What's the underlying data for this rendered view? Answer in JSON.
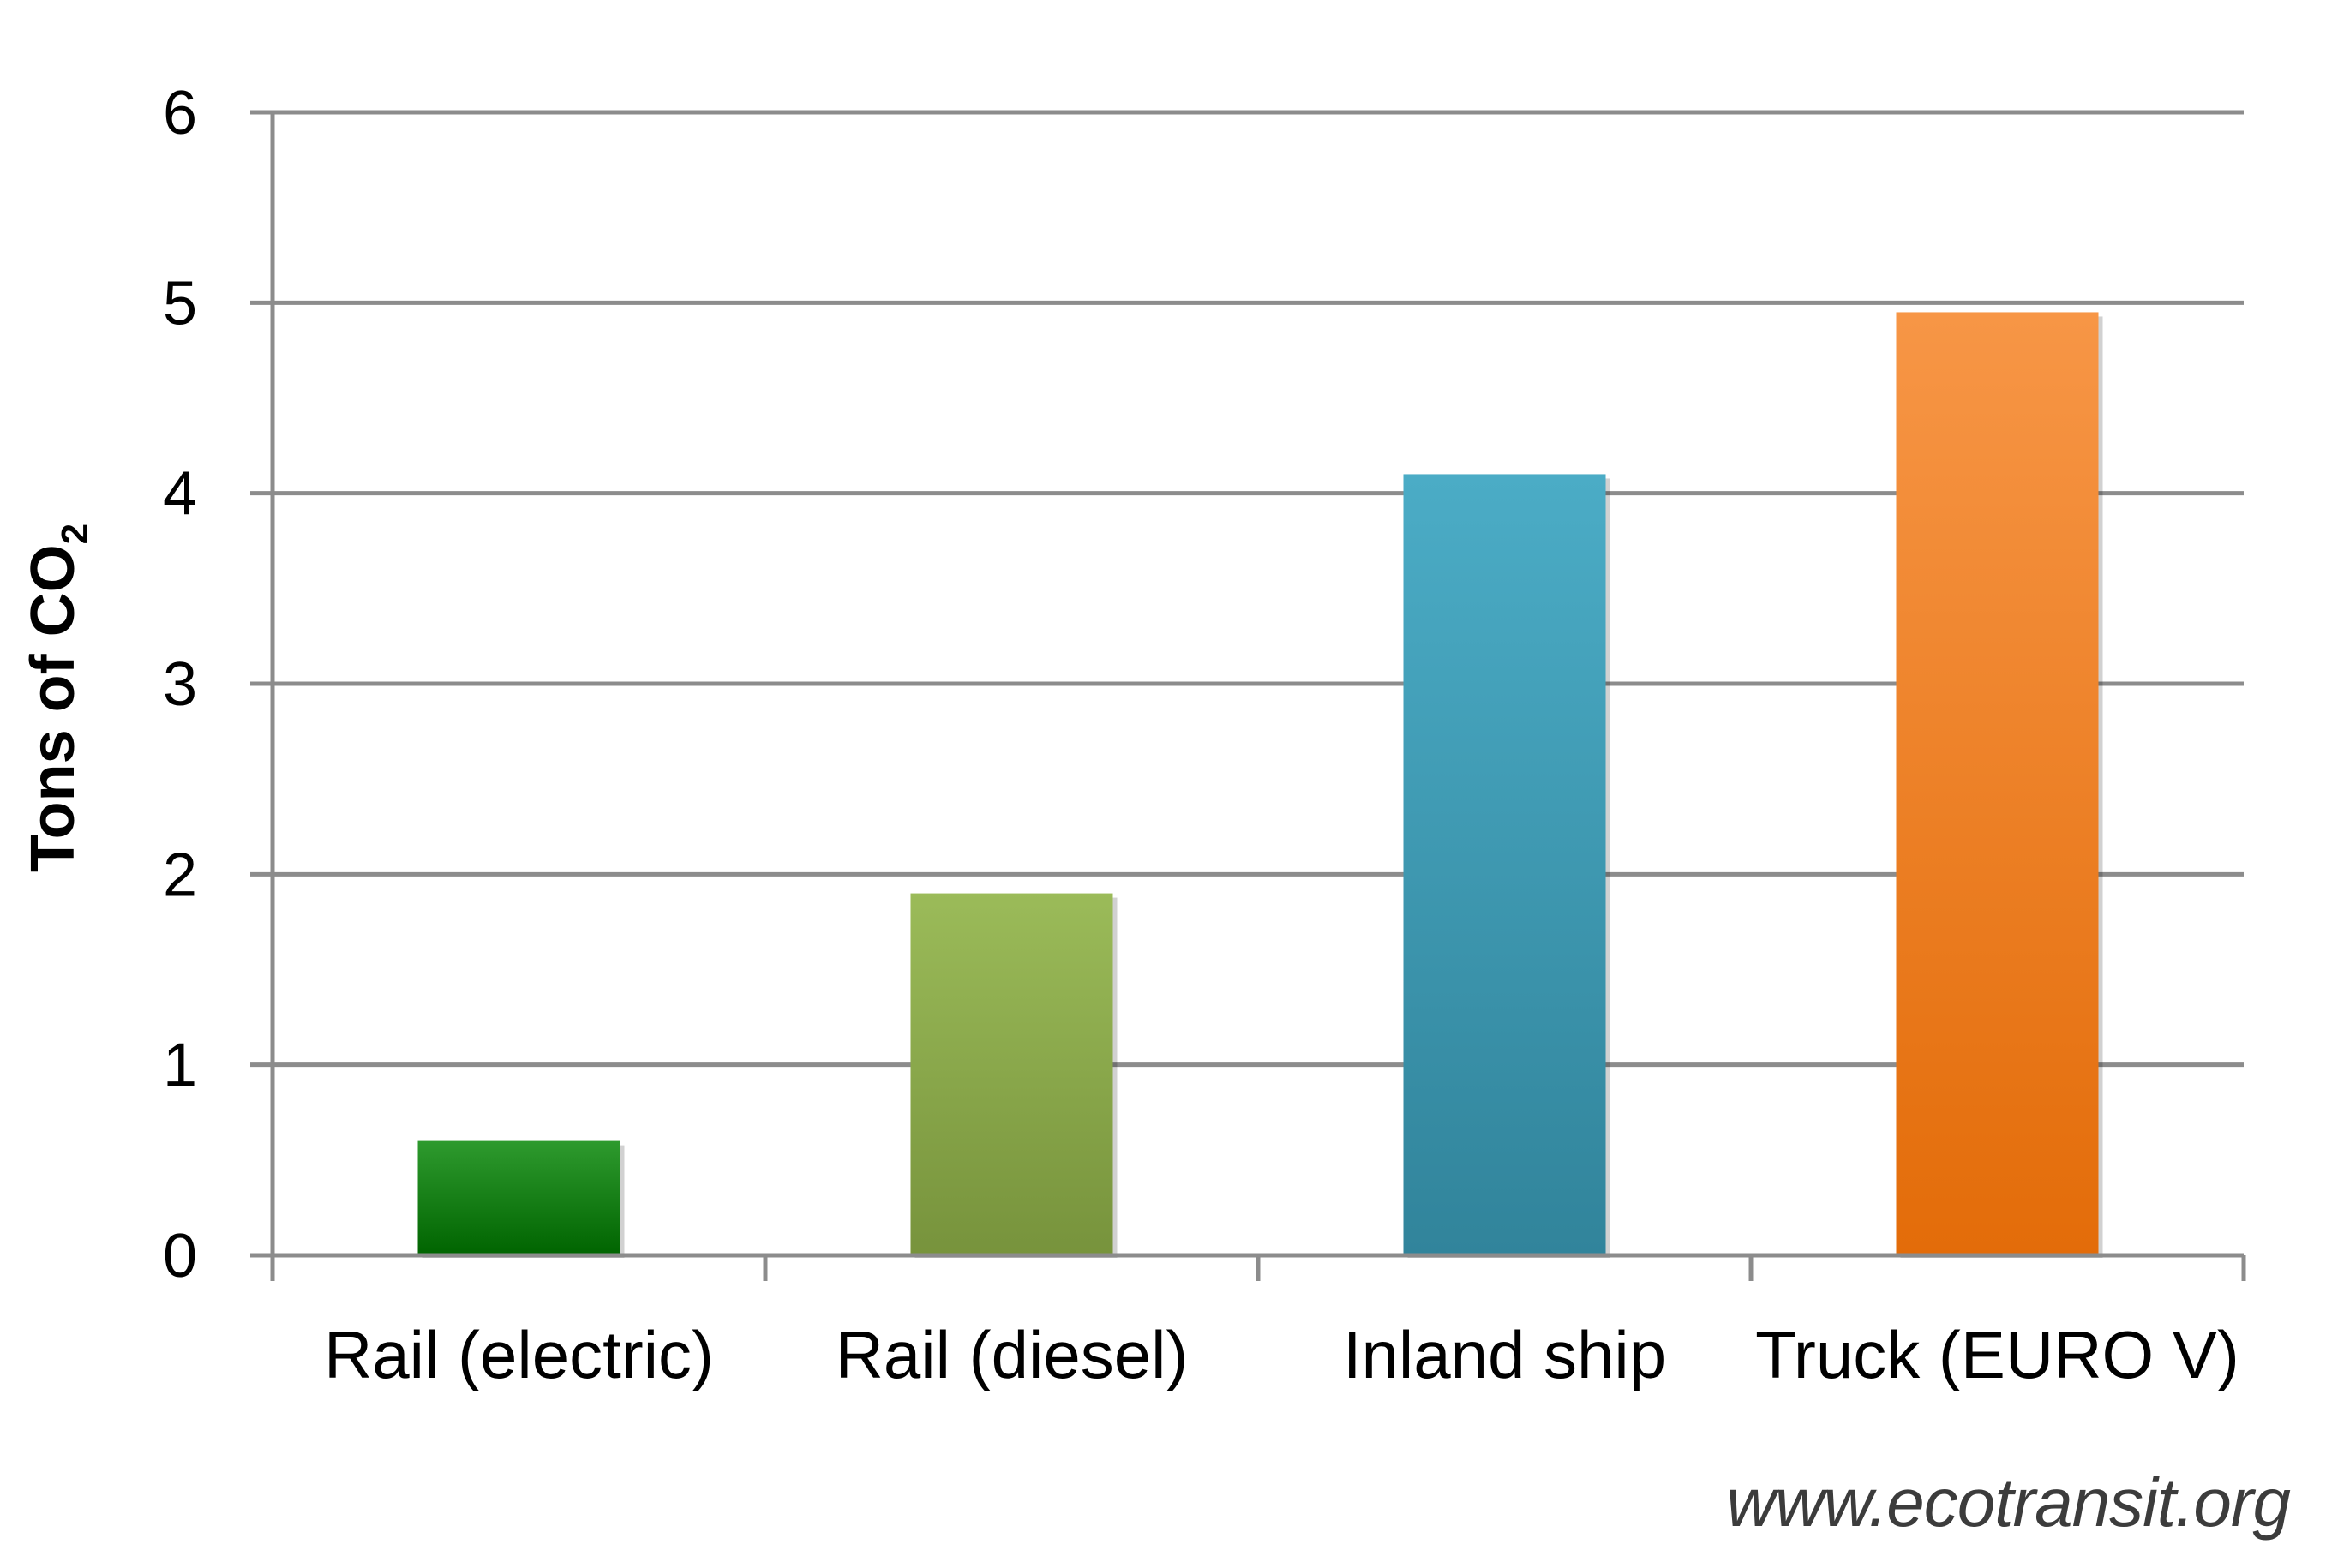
{
  "chart_data": {
    "type": "bar",
    "categories": [
      "Rail (electric)",
      "Rail (diesel)",
      "Inland ship",
      "Truck (EURO V)"
    ],
    "values": [
      0.6,
      1.9,
      4.1,
      4.95
    ],
    "title": "",
    "xlabel": "",
    "ylabel": "Tons of CO",
    "ylabel_subscript": "2",
    "ylim": [
      0,
      6
    ],
    "yticks": [
      "0",
      "1",
      "2",
      "3",
      "4",
      "5",
      "6"
    ],
    "grid": true,
    "legend": "none",
    "colors": {
      "bars_top": [
        "#2e9a2e",
        "#9bbb59",
        "#4bacc6",
        "#f79646"
      ],
      "bars_bottom": [
        "#006400",
        "#77933c",
        "#31849b",
        "#e36c09"
      ],
      "gridline": "#8c8c8c",
      "axis": "#8c8c8c"
    }
  },
  "footer": {
    "source": "www.ecotransit.org",
    "source_color": "#3c3c3c"
  }
}
